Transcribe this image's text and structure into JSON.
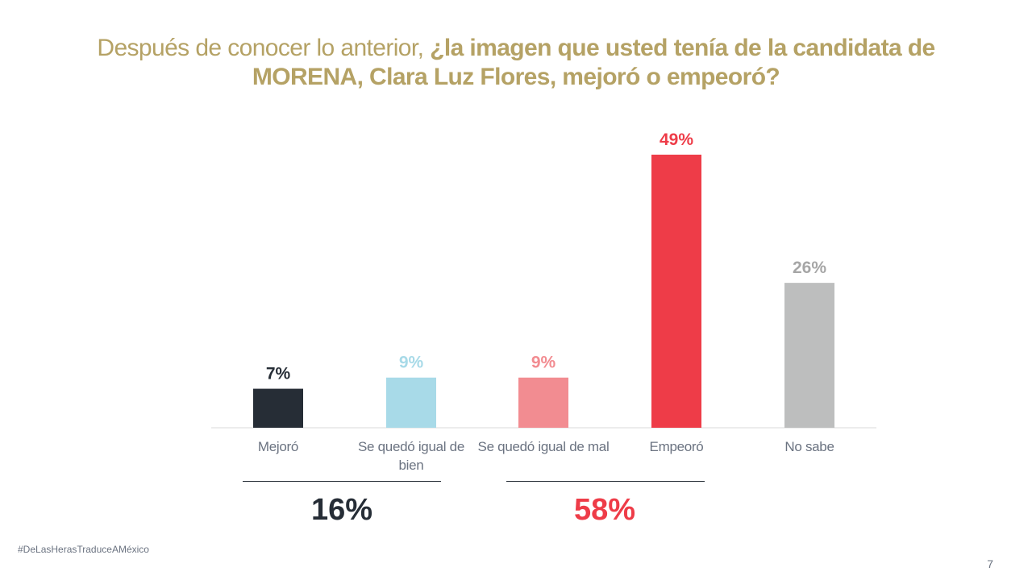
{
  "title": {
    "normal": "Después de conocer lo anterior, ",
    "bold": "¿la imagen que usted tenía de la candidata de MORENA, Clara Luz Flores, mejoró o empeoró?"
  },
  "chart_data": {
    "type": "bar",
    "title": "Después de conocer lo anterior, ¿la imagen que usted tenía de la candidata de MORENA, Clara Luz Flores, mejoró o empeoró?",
    "categories": [
      "Mejoró",
      "Se quedó igual de bien",
      "Se quedó igual de mal",
      "Empeoró",
      "No sabe"
    ],
    "values": [
      7,
      9,
      9,
      49,
      26
    ],
    "value_labels": [
      "7%",
      "9%",
      "9%",
      "49%",
      "26%"
    ],
    "colors": [
      "#262D36",
      "#A8DAE8",
      "#F28C91",
      "#EE3C48",
      "#BDBEBE"
    ],
    "label_colors": [
      "#262D36",
      "#A8DAE8",
      "#F28C91",
      "#EE3C48",
      "#A6A6A6"
    ],
    "ylim": [
      0,
      49
    ],
    "xlabel": "",
    "ylabel": "",
    "grid": false,
    "groups": [
      {
        "label": "16%",
        "color": "#262D36",
        "categories": [
          "Mejoró",
          "Se quedó igual de bien"
        ]
      },
      {
        "label": "58%",
        "color": "#EE3C48",
        "categories": [
          "Se quedó igual de mal",
          "Empeoró"
        ]
      }
    ]
  },
  "footer": {
    "hashtag": "#DeLasHerasTraduceAMéxico",
    "page_number": "7"
  }
}
